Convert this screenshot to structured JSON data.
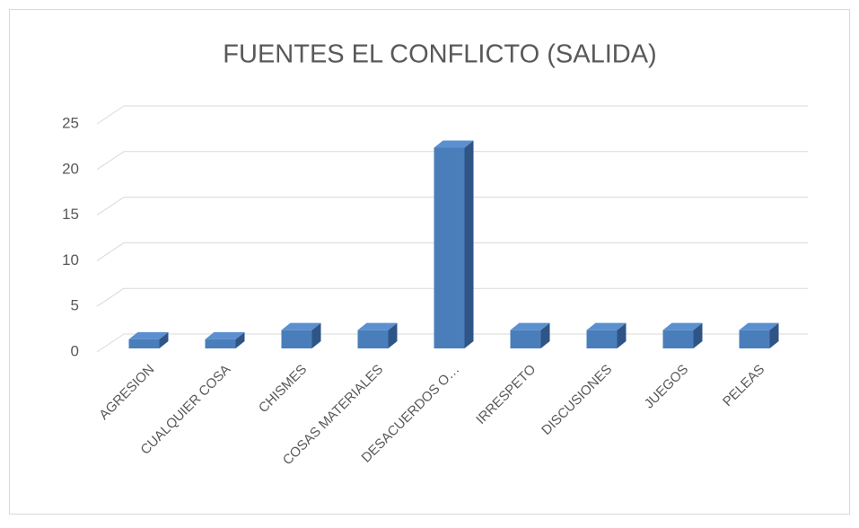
{
  "chart_data": {
    "type": "bar3d",
    "title": "FUENTES EL CONFLICTO (SALIDA)",
    "categories": [
      "AGRESION",
      "CUALQUIER COSA",
      "CHISMES",
      "COSAS MATERIALES",
      "DESACUERDOS O…",
      "IRRESPETO",
      "DISCUSIONES",
      "JUEGOS",
      "PELEAS"
    ],
    "values": [
      1,
      1,
      2,
      2,
      22,
      2,
      2,
      2,
      2
    ],
    "color": "#4a7ebb",
    "ylim": [
      0,
      25
    ],
    "yticks": [
      0,
      5,
      10,
      15,
      20,
      25
    ],
    "grid": true
  }
}
